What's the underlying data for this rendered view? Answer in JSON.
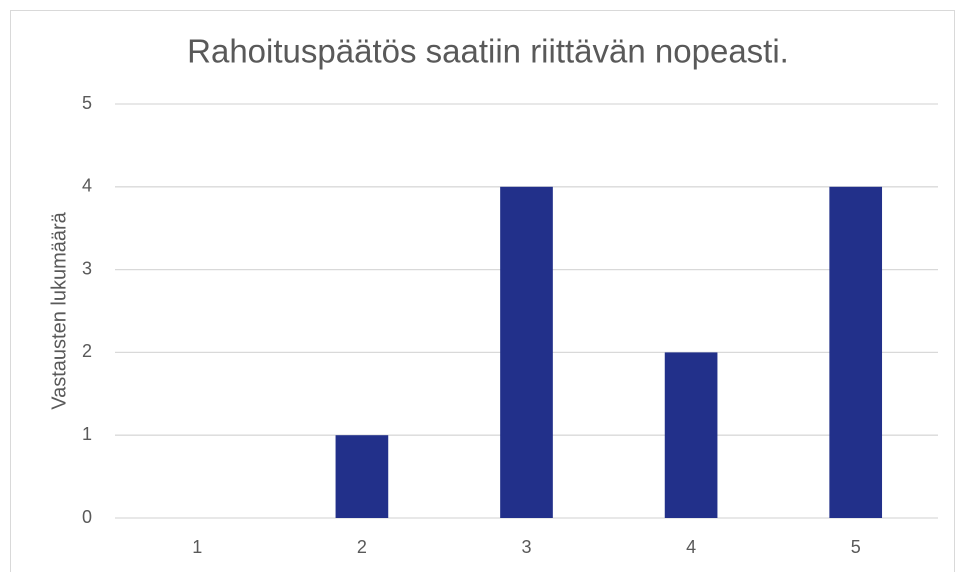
{
  "chart_data": {
    "type": "bar",
    "title": "Rahoituspäätös saatiin riittävän nopeasti.",
    "y_label": "Vastausten lukumäärä",
    "categories": [
      "1",
      "2",
      "3",
      "4",
      "5"
    ],
    "values": [
      0,
      1,
      4,
      2,
      4
    ],
    "color": "#22308a",
    "ylim": [
      0,
      5
    ],
    "yticks": [
      0,
      1,
      2,
      3,
      4,
      5
    ],
    "grid": true
  }
}
